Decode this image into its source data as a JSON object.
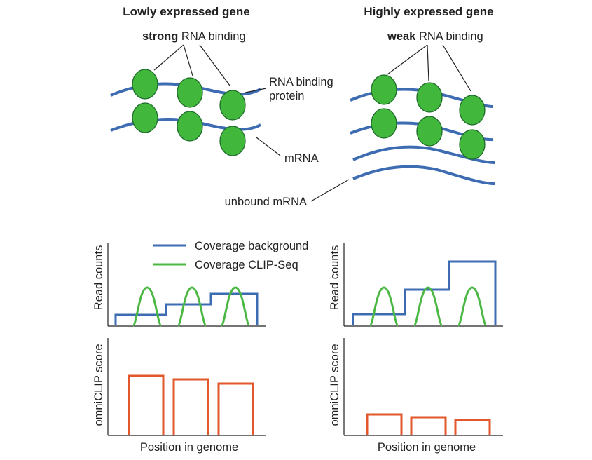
{
  "colors": {
    "mrna": "#3d6cb3",
    "protein_fill": "#41b73c",
    "protein_stroke": "#1e6b2a",
    "background_line": "#3d6cb3",
    "clip_line": "#4ab843",
    "score_line": "#e2572b",
    "axis": "#222222"
  },
  "left_panel": {
    "title": "Lowly expressed gene",
    "binding_strength_word": "strong",
    "binding_rest": " RNA binding",
    "protein_label_line1": "RNA binding",
    "protein_label_line2": "protein",
    "mrna_label": "mRNA"
  },
  "right_panel": {
    "title": "Highly expressed gene",
    "binding_strength_word": "weak",
    "binding_rest": " RNA binding",
    "unbound_label": "unbound mRNA"
  },
  "legend": {
    "background": "Coverage background",
    "clip": "Coverage CLIP-Seq"
  },
  "axes": {
    "read_counts": "Read counts",
    "omniclip_score": "omniCLIP score",
    "position": "Position in genome"
  },
  "chart_data": [
    {
      "type": "line",
      "panel": "lowly-expressed-read-counts",
      "series": [
        {
          "name": "Coverage background",
          "kind": "step",
          "levels": [
            1,
            2,
            3
          ]
        },
        {
          "name": "Coverage CLIP-Seq",
          "kind": "peaks",
          "peaks": 3
        }
      ]
    },
    {
      "type": "line",
      "panel": "highly-expressed-read-counts",
      "series": [
        {
          "name": "Coverage background",
          "kind": "step",
          "levels": [
            1,
            3,
            6
          ]
        },
        {
          "name": "Coverage CLIP-Seq",
          "kind": "peaks",
          "peaks": 3
        }
      ]
    },
    {
      "type": "bar",
      "panel": "lowly-expressed-omniclip-score",
      "values": [
        0.85,
        0.8,
        0.74
      ]
    },
    {
      "type": "bar",
      "panel": "highly-expressed-omniclip-score",
      "values": [
        0.3,
        0.26,
        0.22
      ]
    }
  ]
}
